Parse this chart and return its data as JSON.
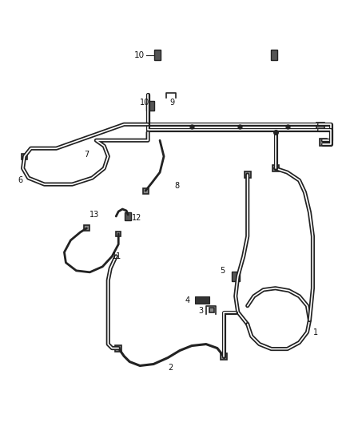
{
  "bg_color": "#ffffff",
  "line_color": "#222222",
  "label_color": "#111111",
  "figsize": [
    4.38,
    5.33
  ],
  "dpi": 100
}
